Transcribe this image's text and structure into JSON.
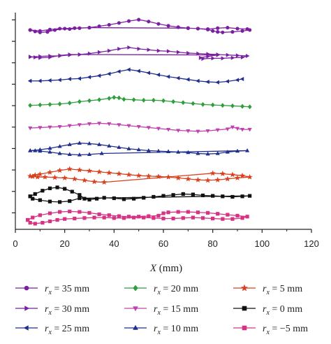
{
  "chart_data": {
    "type": "line",
    "title": "",
    "xlabel": "X (mm)",
    "ylabel": "",
    "xlim": [
      0,
      120
    ],
    "xticks": [
      0,
      20,
      40,
      60,
      80,
      100,
      120
    ],
    "grid": false,
    "legend_position": "bottom",
    "series": [
      {
        "name": "r_x = 35 mm",
        "sub": "x",
        "value_text": " = 35 mm",
        "color": "#7B1FA2",
        "marker": "circle",
        "x": [
          6,
          10,
          14,
          18,
          22,
          26,
          30,
          34,
          38,
          42,
          46,
          50,
          54,
          58,
          62,
          66,
          70,
          74,
          78,
          82,
          86,
          90,
          94,
          95,
          92,
          88,
          84,
          82,
          80,
          78,
          74,
          70,
          30,
          24,
          20,
          16,
          13,
          10,
          8,
          6
        ],
        "y": [
          33.8,
          33.6,
          33.9,
          34.1,
          34.0,
          34.2,
          34.3,
          34.6,
          34.9,
          35.3,
          35.7,
          36.0,
          35.6,
          35.1,
          34.7,
          34.4,
          34.2,
          34.1,
          34.0,
          34.2,
          34.3,
          34.1,
          34.0,
          33.8,
          33.6,
          33.4,
          33.3,
          33.4,
          33.6,
          33.9,
          34.1,
          34.2,
          34.3,
          34.2,
          34.1,
          33.8,
          33.4,
          33.3,
          33.5,
          33.8
        ]
      },
      {
        "name": "r_x = 30 mm",
        "sub": "x",
        "value_text": " = 30 mm",
        "color": "#7B1FA2",
        "marker": "triangle-right",
        "x": [
          6,
          10,
          14,
          18,
          22,
          26,
          30,
          34,
          38,
          42,
          46,
          50,
          54,
          58,
          62,
          66,
          70,
          74,
          78,
          82,
          86,
          90,
          94,
          92,
          88,
          84,
          80,
          76,
          75,
          78,
          82,
          26,
          22,
          18,
          14,
          10,
          8,
          6
        ],
        "y": [
          28.1,
          28.2,
          28.3,
          28.3,
          28.5,
          28.6,
          28.8,
          29.1,
          29.4,
          29.8,
          30.1,
          29.8,
          29.6,
          29.4,
          29.3,
          29.1,
          28.9,
          28.8,
          28.7,
          28.6,
          28.5,
          28.4,
          28.3,
          28.0,
          27.9,
          27.8,
          27.8,
          27.7,
          27.9,
          28.2,
          28.5,
          28.6,
          28.6,
          28.4,
          28.0,
          27.9,
          28.0,
          28.1
        ]
      },
      {
        "name": "r_x = 25 mm",
        "sub": "x",
        "value_text": " = 25 mm",
        "color": "#1F2E8C",
        "marker": "triangle-left",
        "x": [
          6,
          10,
          14,
          18,
          22,
          26,
          30,
          34,
          38,
          42,
          46,
          50,
          54,
          58,
          62,
          66,
          70,
          74,
          78,
          82,
          86,
          90,
          92
        ],
        "y": [
          23.0,
          23.0,
          23.1,
          23.2,
          23.4,
          23.5,
          23.8,
          24.1,
          24.5,
          25.0,
          25.4,
          25.1,
          24.7,
          24.3,
          23.9,
          23.6,
          23.3,
          23.0,
          22.8,
          22.7,
          22.9,
          23.2,
          23.4
        ]
      },
      {
        "name": "r_x = 20 mm",
        "sub": "x",
        "value_text": " = 20 mm",
        "color": "#2E9E3A",
        "marker": "diamond",
        "x": [
          6,
          10,
          14,
          18,
          22,
          26,
          30,
          34,
          38,
          40,
          42,
          44,
          48,
          52,
          56,
          60,
          64,
          68,
          72,
          76,
          80,
          84,
          88,
          92,
          95
        ],
        "y": [
          17.8,
          17.9,
          18.0,
          18.1,
          18.3,
          18.6,
          18.8,
          19.0,
          19.3,
          19.5,
          19.4,
          19.1,
          19.0,
          18.9,
          18.9,
          18.8,
          18.6,
          18.4,
          18.2,
          18.0,
          17.9,
          17.8,
          17.7,
          17.6,
          17.5
        ]
      },
      {
        "name": "r_x = 15 mm",
        "sub": "x",
        "value_text": " = 15 mm",
        "color": "#C040B0",
        "marker": "triangle-down",
        "x": [
          6,
          10,
          14,
          18,
          22,
          26,
          30,
          34,
          38,
          42,
          46,
          50,
          54,
          58,
          62,
          66,
          70,
          74,
          78,
          82,
          86,
          88,
          90,
          92,
          95
        ],
        "y": [
          13.0,
          13.1,
          13.2,
          13.3,
          13.5,
          13.7,
          13.9,
          14.0,
          13.9,
          13.7,
          13.5,
          13.3,
          13.1,
          12.9,
          12.7,
          12.5,
          12.4,
          12.3,
          12.4,
          12.6,
          12.8,
          13.2,
          12.9,
          12.7,
          12.7
        ]
      },
      {
        "name": "r_x = 10 mm",
        "sub": "x",
        "value_text": " = 10 mm",
        "color": "#1F2E8C",
        "marker": "triangle-up",
        "x": [
          6,
          10,
          14,
          18,
          22,
          26,
          30,
          34,
          38,
          42,
          46,
          50,
          54,
          58,
          62,
          66,
          70,
          74,
          78,
          82,
          86,
          90,
          94,
          35,
          30,
          26,
          22,
          18,
          14,
          10,
          8,
          6
        ],
        "y": [
          8.2,
          8.4,
          8.7,
          9.1,
          9.5,
          9.8,
          9.7,
          9.5,
          9.2,
          8.9,
          8.6,
          8.4,
          8.2,
          8.1,
          8.0,
          7.9,
          7.8,
          7.6,
          7.5,
          7.6,
          7.9,
          8.1,
          8.2,
          7.6,
          7.4,
          7.3,
          7.4,
          7.6,
          7.9,
          8.1,
          8.2,
          8.2
        ]
      },
      {
        "name": "r_x = 5 mm",
        "sub": "x",
        "value_text": " = 5 mm",
        "color": "#D9411E",
        "marker": "star",
        "x": [
          6,
          8,
          10,
          14,
          18,
          22,
          26,
          30,
          34,
          38,
          42,
          46,
          50,
          54,
          58,
          62,
          66,
          70,
          74,
          78,
          82,
          86,
          90,
          95,
          92,
          88,
          84,
          80,
          36,
          32,
          28,
          24,
          20,
          16,
          12,
          9,
          7,
          6
        ],
        "y": [
          2.8,
          3.0,
          3.2,
          3.6,
          4.0,
          4.3,
          4.1,
          3.9,
          3.7,
          3.5,
          3.3,
          3.1,
          2.9,
          2.8,
          2.7,
          2.6,
          2.4,
          2.2,
          2.0,
          1.9,
          2.0,
          2.2,
          2.4,
          2.6,
          2.9,
          3.1,
          3.3,
          3.4,
          1.5,
          1.6,
          1.9,
          2.2,
          2.4,
          2.5,
          2.6,
          2.6,
          2.7,
          2.8
        ]
      },
      {
        "name": "r_x = 0 mm",
        "sub": "x",
        "value_text": " = 0 mm",
        "color": "#111111",
        "marker": "square",
        "x": [
          6,
          8,
          11,
          14,
          17,
          20,
          23,
          26,
          28,
          30,
          33,
          36,
          40,
          44,
          48,
          52,
          56,
          60,
          64,
          68,
          72,
          76,
          80,
          84,
          88,
          92,
          95,
          26,
          22,
          18,
          14,
          10,
          7,
          6
        ],
        "y": [
          -1.5,
          -1.0,
          -0.3,
          0.2,
          0.4,
          0.1,
          -0.5,
          -1.2,
          -2.0,
          -2.2,
          -2.0,
          -1.8,
          -1.9,
          -2.1,
          -2.0,
          -1.8,
          -1.6,
          -1.4,
          -1.2,
          -1.0,
          -1.1,
          -1.3,
          -1.4,
          -1.5,
          -1.6,
          -1.5,
          -1.4,
          -1.9,
          -2.5,
          -2.7,
          -2.6,
          -2.3,
          -2.0,
          -1.5
        ]
      },
      {
        "name": "r_x = −5 mm",
        "sub": "x",
        "value_text": " = −5 mm",
        "color": "#D63384",
        "marker": "square",
        "x": [
          5,
          7,
          10,
          14,
          18,
          22,
          26,
          30,
          34,
          38,
          42,
          46,
          50,
          54,
          58,
          60,
          62,
          66,
          70,
          74,
          78,
          82,
          86,
          90,
          94,
          92,
          88,
          84,
          80,
          76,
          72,
          68,
          64,
          60,
          56,
          52,
          48,
          44,
          40,
          36,
          32,
          28,
          24,
          20,
          17,
          14,
          11,
          8,
          6,
          5
        ],
        "y": [
          -6.5,
          -6.0,
          -5.5,
          -5.1,
          -4.8,
          -4.7,
          -4.8,
          -5.0,
          -5.3,
          -5.5,
          -5.7,
          -5.8,
          -5.8,
          -5.7,
          -5.6,
          -5.1,
          -4.9,
          -4.8,
          -4.8,
          -4.9,
          -5.0,
          -5.2,
          -5.4,
          -5.6,
          -5.8,
          -6.1,
          -6.3,
          -6.3,
          -6.2,
          -6.1,
          -6.0,
          -6.1,
          -6.2,
          -6.2,
          -6.1,
          -6.0,
          -6.0,
          -6.1,
          -6.1,
          -6.0,
          -6.0,
          -6.1,
          -6.2,
          -6.3,
          -6.5,
          -6.8,
          -7.1,
          -7.3,
          -7.1,
          -6.5
        ]
      }
    ]
  }
}
